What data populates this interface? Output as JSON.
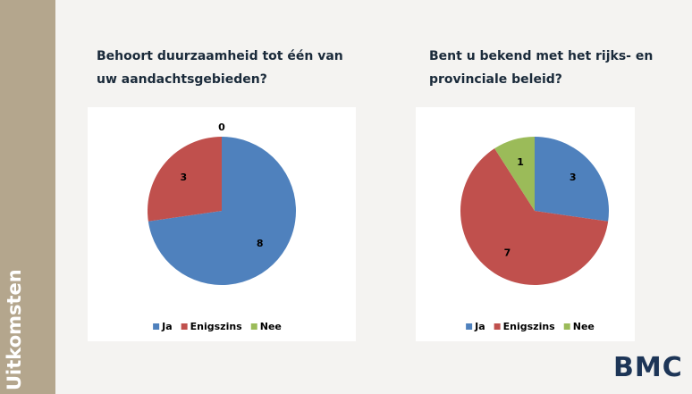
{
  "sidebar": {
    "title": "Uitkomsten"
  },
  "logo": {
    "text": "BMC"
  },
  "chart_data": [
    {
      "type": "pie",
      "title": "Behoort duurzaamheid tot één van uw aandachtsgebieden?",
      "categories": [
        "Ja",
        "Enigszins",
        "Nee"
      ],
      "values": [
        8,
        3,
        0
      ],
      "colors": [
        "#4f81bd",
        "#c0504d",
        "#9bbb59"
      ],
      "legend": "bottom"
    },
    {
      "type": "pie",
      "title": "Bent u bekend met het rijks- en provinciale beleid?",
      "categories": [
        "Ja",
        "Enigszins",
        "Nee"
      ],
      "values": [
        3,
        7,
        1
      ],
      "colors": [
        "#4f81bd",
        "#c0504d",
        "#9bbb59"
      ],
      "legend": "bottom"
    }
  ]
}
